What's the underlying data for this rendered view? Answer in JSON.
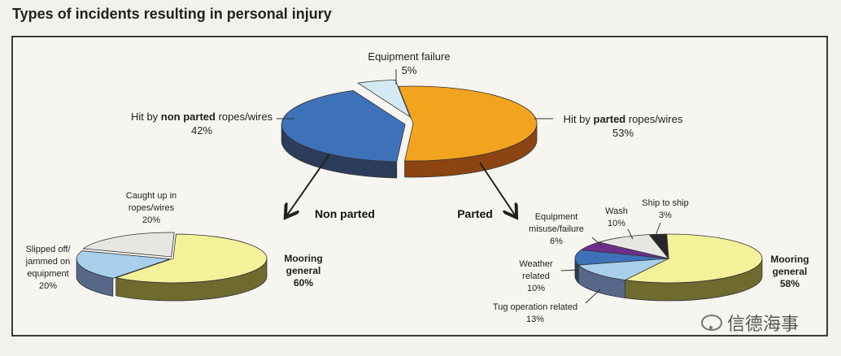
{
  "title": "Types of incidents resulting in personal injury",
  "watermark": "信德海事",
  "colors": {
    "orange": "#f3a41e",
    "orange_side": "#8c4512",
    "blue": "#3e72b8",
    "blue_side": "#2b3d5a",
    "lightblue": "#d4eaf2",
    "lightblue_side": "#8fa8b4",
    "yellow": "#f5f19a",
    "yellow_side": "#6f6b2f",
    "sky": "#a8d0ec",
    "sky_side": "#56678a",
    "grey": "#e6e6e3",
    "grey_side": "#8a8a85",
    "purple": "#6d2f8a",
    "dark": "#262626"
  },
  "labels": {
    "non_parted": "Non parted",
    "parted": "Parted"
  },
  "chart_data": [
    {
      "type": "pie",
      "title": "",
      "slices": [
        {
          "label_lines": [
            [
              {
                "t": "Hit by ",
                "b": false
              },
              {
                "t": "parted",
                "b": true
              },
              {
                "t": " ropes/wires",
                "b": false
              }
            ],
            [
              {
                "t": "53%",
                "b": false
              }
            ]
          ],
          "value": 53,
          "color": "orange"
        },
        {
          "label_lines": [
            [
              {
                "t": "Hit by ",
                "b": false
              },
              {
                "t": "non parted",
                "b": true
              },
              {
                "t": " ropes/wires",
                "b": false
              }
            ],
            [
              {
                "t": "42%",
                "b": false
              }
            ]
          ],
          "value": 42,
          "color": "blue"
        },
        {
          "label_lines": [
            [
              {
                "t": "Equipment failure",
                "b": false
              }
            ],
            [
              {
                "t": "5%",
                "b": false
              }
            ]
          ],
          "value": 5,
          "color": "lightblue"
        }
      ]
    },
    {
      "type": "pie",
      "title": "Non parted",
      "slices": [
        {
          "label_lines": [
            [
              {
                "t": "Mooring",
                "b": true
              }
            ],
            [
              {
                "t": "general",
                "b": true
              }
            ],
            [
              {
                "t": "60%",
                "b": true
              }
            ]
          ],
          "value": 60,
          "color": "yellow"
        },
        {
          "label_lines": [
            [
              {
                "t": "Slipped off/",
                "b": false
              }
            ],
            [
              {
                "t": "jammed on",
                "b": false
              }
            ],
            [
              {
                "t": "equipment",
                "b": false
              }
            ],
            [
              {
                "t": "20%",
                "b": false
              }
            ]
          ],
          "value": 20,
          "color": "sky"
        },
        {
          "label_lines": [
            [
              {
                "t": "Caught up in",
                "b": false
              }
            ],
            [
              {
                "t": "ropes/wires",
                "b": false
              }
            ],
            [
              {
                "t": "20%",
                "b": false
              }
            ]
          ],
          "value": 20,
          "color": "grey"
        }
      ]
    },
    {
      "type": "pie",
      "title": "Parted",
      "slices": [
        {
          "label_lines": [
            [
              {
                "t": "Mooring",
                "b": true
              }
            ],
            [
              {
                "t": "general",
                "b": true
              }
            ],
            [
              {
                "t": "58%",
                "b": true
              }
            ]
          ],
          "value": 58,
          "color": "yellow"
        },
        {
          "label_lines": [
            [
              {
                "t": "Tug operation related",
                "b": false
              }
            ],
            [
              {
                "t": "13%",
                "b": false
              }
            ]
          ],
          "value": 13,
          "color": "sky"
        },
        {
          "label_lines": [
            [
              {
                "t": "Weather",
                "b": false
              }
            ],
            [
              {
                "t": "related",
                "b": false
              }
            ],
            [
              {
                "t": "10%",
                "b": false
              }
            ]
          ],
          "value": 10,
          "color": "blue"
        },
        {
          "label_lines": [
            [
              {
                "t": "Equipment",
                "b": false
              }
            ],
            [
              {
                "t": "misuse/failure",
                "b": false
              }
            ],
            [
              {
                "t": "6%",
                "b": false
              }
            ]
          ],
          "value": 6,
          "color": "purple"
        },
        {
          "label_lines": [
            [
              {
                "t": "Wash",
                "b": false
              }
            ],
            [
              {
                "t": "10%",
                "b": false
              }
            ]
          ],
          "value": 10,
          "color": "grey"
        },
        {
          "label_lines": [
            [
              {
                "t": "Ship to ship",
                "b": false
              }
            ],
            [
              {
                "t": "3%",
                "b": false
              }
            ]
          ],
          "value": 3,
          "color": "dark"
        }
      ]
    }
  ]
}
